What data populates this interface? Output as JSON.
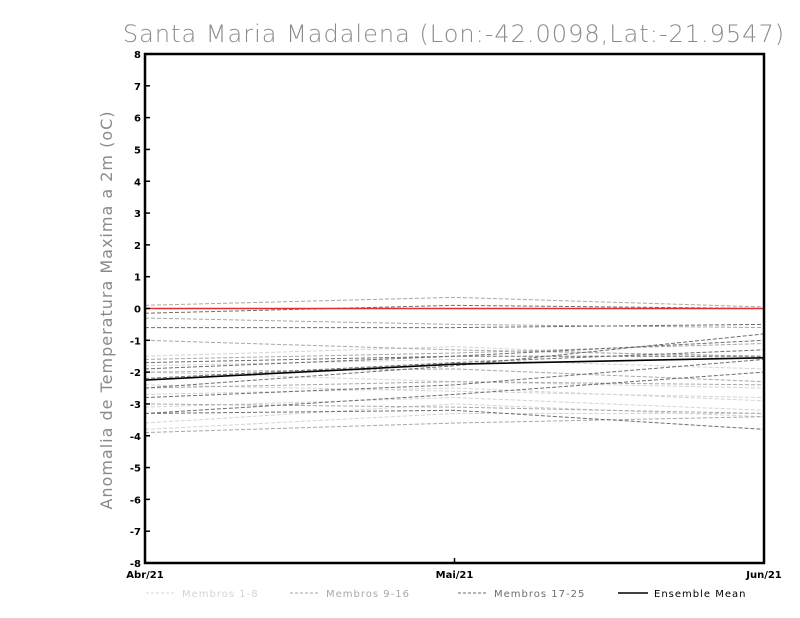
{
  "chart_data": {
    "type": "line",
    "title": "Santa Maria Madalena (Lon:-42.0098,Lat:-21.9547)",
    "ylabel": "Anomalia de Temperatura Maxima a 2m (oC)",
    "xlabel": "",
    "categories": [
      "Abr/21",
      "Mai/21",
      "Jun/21"
    ],
    "ylim": [
      -8,
      8
    ],
    "yticks": [
      "-8",
      "-7",
      "-6",
      "-5",
      "-4",
      "-3",
      "-2",
      "-1",
      "0",
      "1",
      "2",
      "3",
      "4",
      "5",
      "6",
      "7",
      "8"
    ],
    "grid": false,
    "legend_position": "bottom",
    "zero_line": {
      "color": "#e03030",
      "values": [
        0,
        0,
        0
      ]
    },
    "series": [
      {
        "name": "Membros 1-8",
        "color": "#d4d4d4",
        "style": "dashed",
        "members": [
          [
            -1.5,
            -1.2,
            -1.6
          ],
          [
            -1.8,
            -1.6,
            -1.9
          ],
          [
            -2.0,
            -2.3,
            -2.5
          ],
          [
            -2.4,
            -2.6,
            -2.8
          ],
          [
            -2.7,
            -2.5,
            -2.9
          ],
          [
            -3.1,
            -2.8,
            -3.2
          ],
          [
            -3.6,
            -3.0,
            -3.4
          ],
          [
            -3.8,
            -3.3,
            -3.3
          ]
        ]
      },
      {
        "name": "Membros 9-16",
        "color": "#a8a8a8",
        "style": "dashed",
        "members": [
          [
            0.1,
            0.35,
            0.05
          ],
          [
            -0.3,
            -0.5,
            -0.6
          ],
          [
            -1.0,
            -1.3,
            -1.5
          ],
          [
            -1.6,
            -1.4,
            -1.1
          ],
          [
            -2.0,
            -1.9,
            -2.3
          ],
          [
            -2.5,
            -2.3,
            -2.4
          ],
          [
            -3.0,
            -3.1,
            -3.3
          ],
          [
            -3.9,
            -3.6,
            -3.4
          ]
        ]
      },
      {
        "name": "Membros 17-25",
        "color": "#6e6e6e",
        "style": "dashed",
        "members": [
          [
            -0.15,
            0.1,
            0.0
          ],
          [
            -0.6,
            -0.6,
            -0.5
          ],
          [
            -1.7,
            -1.5,
            -1.0
          ],
          [
            -1.9,
            -1.5,
            -1.5
          ],
          [
            -2.2,
            -1.7,
            -1.3
          ],
          [
            -2.5,
            -1.8,
            -0.8
          ],
          [
            -2.8,
            -2.4,
            -1.6
          ],
          [
            -3.3,
            -2.7,
            -2.0
          ],
          [
            -3.3,
            -3.2,
            -3.8
          ]
        ]
      },
      {
        "name": "Ensemble Mean",
        "color": "#000000",
        "style": "solid",
        "members": [
          [
            -2.25,
            -1.75,
            -1.55
          ]
        ]
      }
    ]
  }
}
